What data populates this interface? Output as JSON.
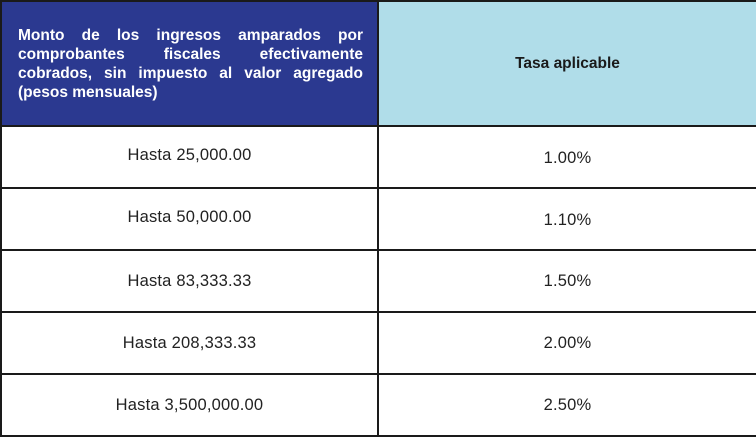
{
  "header": {
    "income_label": "Monto de los ingresos amparados por comprobantes fiscales efectivamente cobrados, sin impuesto al valor agregado (pesos mensuales)",
    "rate_label": "Tasa aplicable"
  },
  "rows": [
    {
      "income": "Hasta 25,000.00",
      "rate": "1.00%"
    },
    {
      "income": "Hasta 50,000.00",
      "rate": "1.10%"
    },
    {
      "income": "Hasta 83,333.33",
      "rate": "1.50%"
    },
    {
      "income": "Hasta 208,333.33",
      "rate": "2.00%"
    },
    {
      "income": "Hasta 3,500,000.00",
      "rate": "2.50%"
    }
  ],
  "colors": {
    "header_income_bg": "#2b3990",
    "header_rate_bg": "#b0dde9",
    "border": "#1a1a1a"
  }
}
